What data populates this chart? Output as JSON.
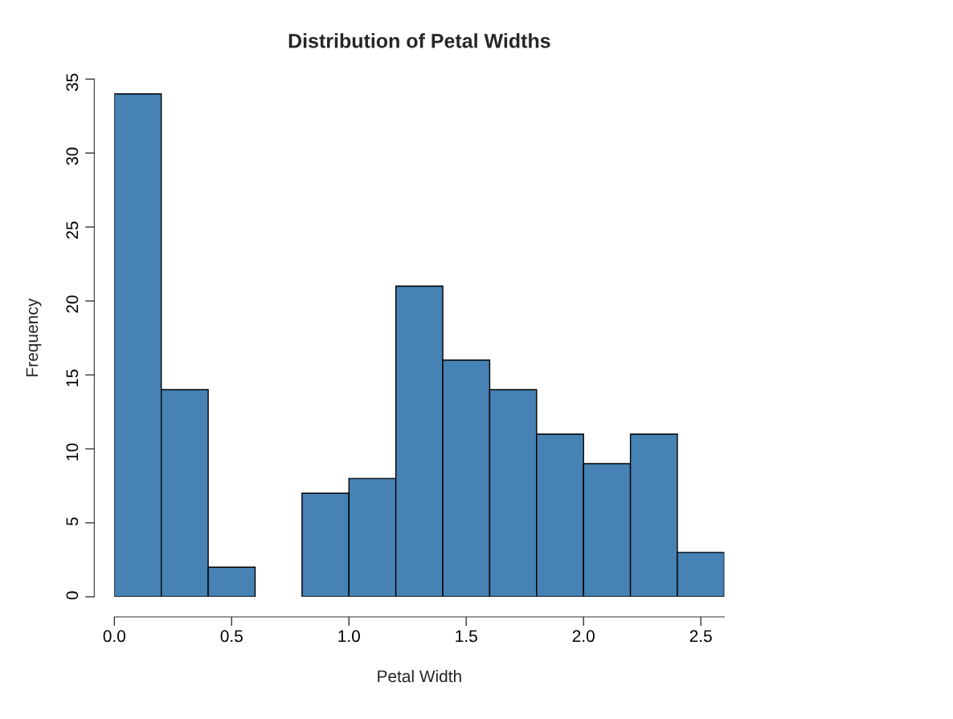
{
  "chart_data": {
    "type": "histogram",
    "title": "Distribution of Petal Widths",
    "xlabel": "Petal Width",
    "ylabel": "Frequency",
    "bins": [
      0.0,
      0.2,
      0.4,
      0.6,
      0.8,
      1.0,
      1.2,
      1.4,
      1.6,
      1.8,
      2.0,
      2.2,
      2.4,
      2.6
    ],
    "values": [
      34,
      14,
      2,
      0,
      7,
      8,
      21,
      16,
      14,
      11,
      9,
      11,
      3
    ],
    "color": "#4682b4",
    "xlim": [
      0,
      2.6
    ],
    "xticks": [
      {
        "value": 0,
        "label": "0.0"
      },
      0.5,
      {
        "value": 1,
        "label": "1.0"
      },
      1.5,
      {
        "value": 2,
        "label": "2.0"
      },
      2.5
    ],
    "ylim": [
      0,
      35
    ],
    "yticks": [
      0,
      5,
      10,
      15,
      20,
      25,
      30,
      35
    ],
    "grid": false,
    "legend": false
  }
}
